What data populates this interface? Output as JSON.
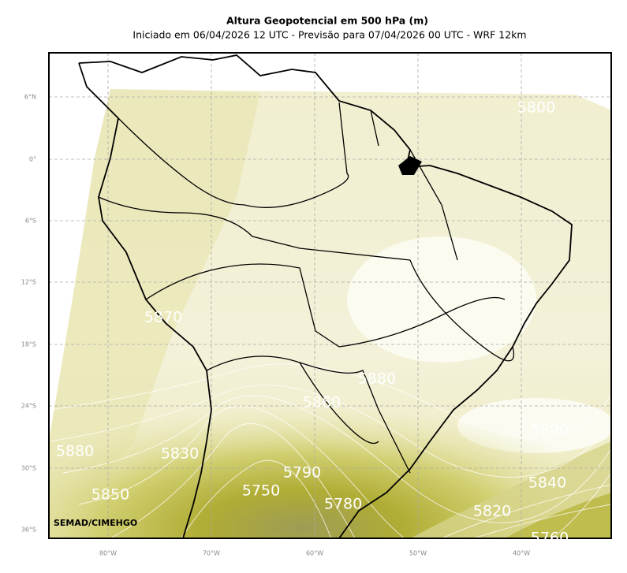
{
  "header": {
    "title": "Altura Geopotencial em 500 hPa (m)",
    "subtitle": "Iniciado em 06/04/2026 12 UTC - Previsão para 07/04/2026 00 UTC - WRF 12km"
  },
  "map": {
    "lat_labels": [
      "6°N",
      "0°",
      "6°S",
      "12°S",
      "18°S",
      "24°S",
      "30°S",
      "36°S"
    ],
    "lon_labels": [
      "80°W",
      "70°W",
      "60°W",
      "50°W",
      "40°W"
    ],
    "contour_labels": [
      "5800",
      "5870",
      "5880",
      "5860",
      "5890",
      "5880",
      "5830",
      "5790",
      "5850",
      "5750",
      "5780",
      "5840",
      "5820",
      "5760"
    ],
    "credit": "SEMAD/CIMEHGO"
  }
}
